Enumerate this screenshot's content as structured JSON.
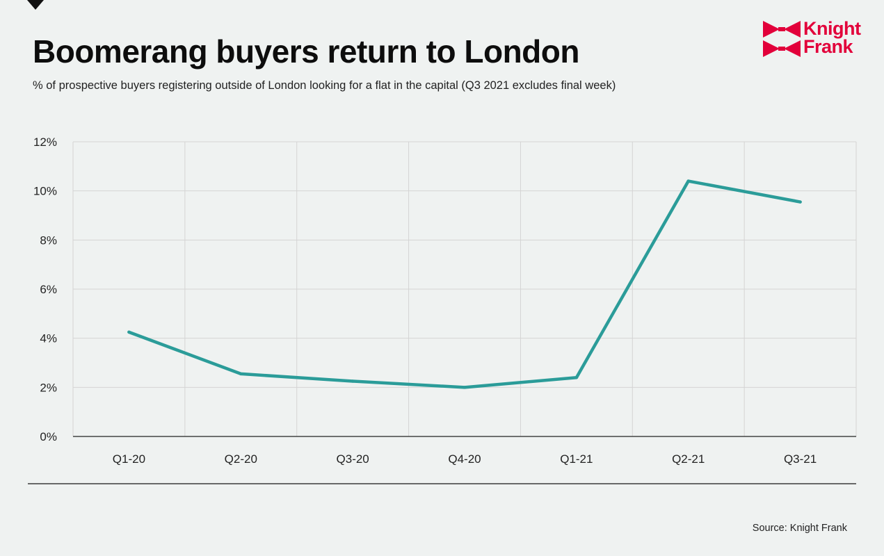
{
  "header": {
    "title": "Boomerang buyers return to London",
    "subtitle": "% of prospective buyers registering outside of London looking for a flat in the capital (Q3 2021 excludes final week)"
  },
  "logo": {
    "line1": "Knight",
    "line2": "Frank",
    "color": "#e2003a"
  },
  "chart_data": {
    "type": "line",
    "title": "Boomerang buyers return to London",
    "categories": [
      "Q1-20",
      "Q2-20",
      "Q3-20",
      "Q4-20",
      "Q1-21",
      "Q2-21",
      "Q3-21"
    ],
    "series": [
      {
        "values": [
          4.25,
          2.55,
          2.25,
          2.0,
          2.4,
          10.4,
          9.55
        ],
        "color": "#2b9c99"
      }
    ],
    "ylim": [
      0,
      12
    ],
    "yticks": [
      0,
      2,
      4,
      6,
      8,
      10,
      12
    ],
    "ytick_labels": [
      "0%",
      "2%",
      "4%",
      "6%",
      "8%",
      "10%",
      "12%"
    ],
    "grid": true,
    "legend": "none"
  },
  "footer": {
    "source": "Source: Knight Frank"
  },
  "colors": {
    "background": "#eff2f1",
    "grid": "#d4d4d4",
    "axis": "#444444",
    "line": "#2b9c99",
    "accent": "#e2003a"
  }
}
